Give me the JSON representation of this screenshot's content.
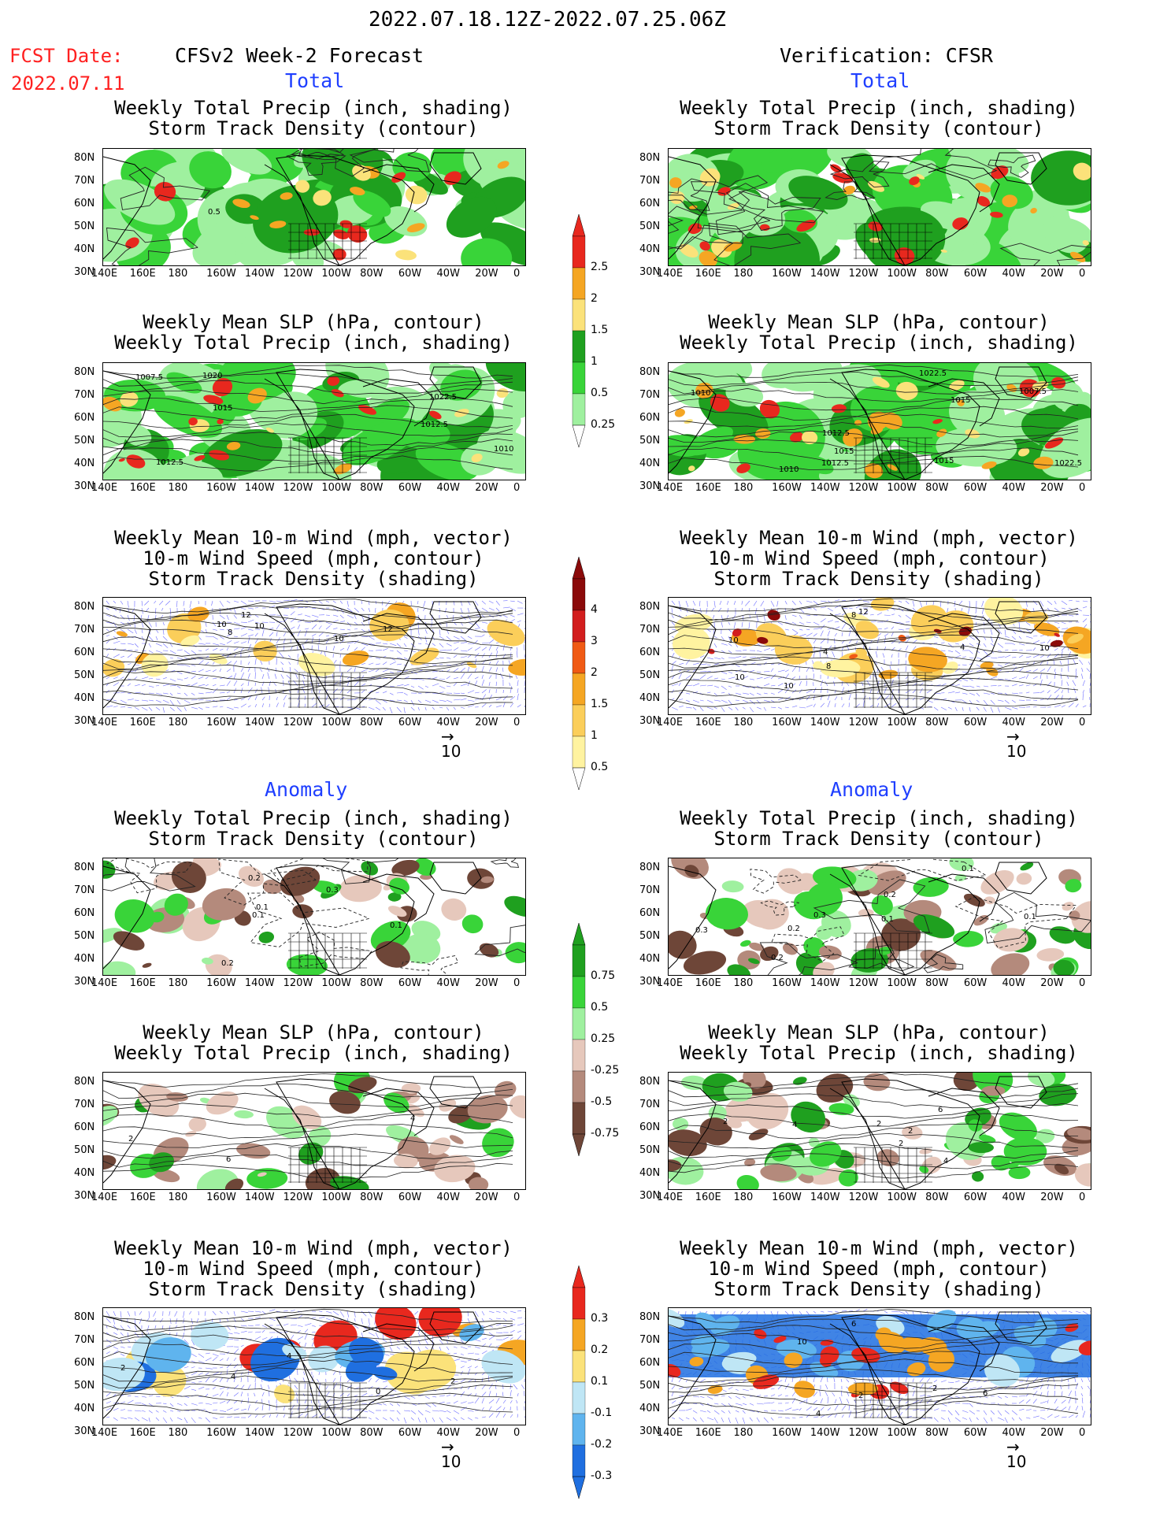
{
  "header": {
    "period": "2022.07.18.12Z-2022.07.25.06Z",
    "fcst_label": "FCST Date:",
    "fcst_date": "2022.07.11",
    "left_title": "CFSv2 Week-2 Forecast",
    "right_title": "Verification: CFSR"
  },
  "sections": {
    "total": "Total",
    "anomaly": "Anomaly"
  },
  "panel_titles": {
    "precip_storm": [
      "Weekly Total Precip (inch, shading)",
      "Storm Track Density (contour)"
    ],
    "slp_precip": [
      "Weekly Mean SLP (hPa, contour)",
      "Weekly Total Precip (inch, shading)"
    ],
    "wind_storm": [
      "Weekly Mean 10-m Wind (mph, vector)",
      "10-m Wind Speed (mph, contour)",
      "Storm Track Density (shading)"
    ]
  },
  "axes": {
    "lat_labels": [
      "80N",
      "70N",
      "60N",
      "50N",
      "40N",
      "30N"
    ],
    "lon_labels": [
      "140E",
      "160E",
      "180",
      "160W",
      "140W",
      "120W",
      "100W",
      "80W",
      "60W",
      "40W",
      "20W",
      "0"
    ]
  },
  "vector_ref": "10",
  "colorbars": {
    "total_precip": {
      "labels": [
        "2.5",
        "2",
        "1.5",
        "1",
        "0.5",
        "0.25"
      ],
      "colors": [
        "#e8281e",
        "#f5a623",
        "#fbe27a",
        "#1fa01f",
        "#39d439",
        "#9ff09f"
      ]
    },
    "total_storm": {
      "labels": [
        "4",
        "3",
        "2",
        "1.5",
        "1",
        "0.5"
      ],
      "colors": [
        "#8b0a0a",
        "#d21e1e",
        "#f05a14",
        "#f5a623",
        "#fbce5a",
        "#fff3a0"
      ]
    },
    "anom_precip": {
      "labels": [
        "0.75",
        "0.5",
        "0.25",
        "-0.25",
        "-0.5",
        "-0.75"
      ],
      "colors": [
        "#1fa01f",
        "#39d439",
        "#9ff09f",
        "#e6c8bc",
        "#b48a7c",
        "#6e4638"
      ]
    },
    "anom_storm": {
      "labels": [
        "0.3",
        "0.2",
        "0.1",
        "-0.1",
        "-0.2",
        "-0.3"
      ],
      "colors": [
        "#e8281e",
        "#f5a623",
        "#fbe27a",
        "#bfe6f5",
        "#5fb4ee",
        "#1f6fe0"
      ]
    }
  },
  "contour_labels": {
    "L_precip_total": [
      "0.5"
    ],
    "L_slp_total": [
      "1015",
      "1012.5",
      "1007.5",
      "1010",
      "1012.5",
      "1020",
      "1022.5"
    ],
    "R_slp_total": [
      "1010",
      "1007.5",
      "1015",
      "1010",
      "1012.5",
      "1015",
      "1015",
      "1012.5",
      "1022.5",
      "1022.5"
    ],
    "L_wind_total": [
      "10",
      "12",
      "12",
      "10",
      "10",
      "8"
    ],
    "R_wind_total": [
      "10",
      "10",
      "4",
      "8",
      "10",
      "12",
      "10",
      "8",
      "4"
    ],
    "L_precip_anom": [
      "0.2",
      "0.3",
      "0.1",
      "0.1",
      "0.2",
      "0.1"
    ],
    "R_precip_anom": [
      "0.2",
      "0.3",
      "0.3",
      "0.1",
      "0.1",
      "0.2",
      "0.2",
      "0.1"
    ],
    "L_slp_anom": [
      "6",
      "4",
      "2"
    ],
    "R_slp_anom": [
      "4",
      "2",
      "4",
      "2",
      "6",
      "2",
      "2"
    ],
    "L_wind_anom": [
      "4",
      "2",
      "0",
      "4",
      "2"
    ],
    "R_wind_anom": [
      "10",
      "6",
      "4",
      "2",
      "6",
      "2"
    ]
  }
}
